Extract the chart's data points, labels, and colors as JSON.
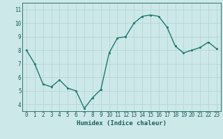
{
  "x": [
    0,
    1,
    2,
    3,
    4,
    5,
    6,
    7,
    8,
    9,
    10,
    11,
    12,
    13,
    14,
    15,
    16,
    17,
    18,
    19,
    20,
    21,
    22,
    23
  ],
  "y": [
    8.0,
    7.0,
    5.5,
    5.3,
    5.8,
    5.2,
    5.0,
    3.7,
    4.5,
    5.1,
    7.8,
    8.9,
    9.0,
    10.0,
    10.5,
    10.6,
    10.5,
    9.7,
    8.3,
    7.8,
    8.0,
    8.2,
    8.6,
    8.1
  ],
  "line_color": "#1a7a6e",
  "marker": "s",
  "marker_size": 1.5,
  "bg_color": "#cce8e8",
  "grid_color": "#b8d4d4",
  "xlabel": "Humidex (Indice chaleur)",
  "ylim": [
    3.5,
    11.5
  ],
  "xlim": [
    -0.5,
    23.5
  ],
  "yticks": [
    4,
    5,
    6,
    7,
    8,
    9,
    10,
    11
  ],
  "xticks": [
    0,
    1,
    2,
    3,
    4,
    5,
    6,
    7,
    8,
    9,
    10,
    11,
    12,
    13,
    14,
    15,
    16,
    17,
    18,
    19,
    20,
    21,
    22,
    23
  ],
  "tick_color": "#1a5f5a",
  "label_fontsize": 5.5,
  "xlabel_fontsize": 6.5,
  "linewidth": 1.0
}
